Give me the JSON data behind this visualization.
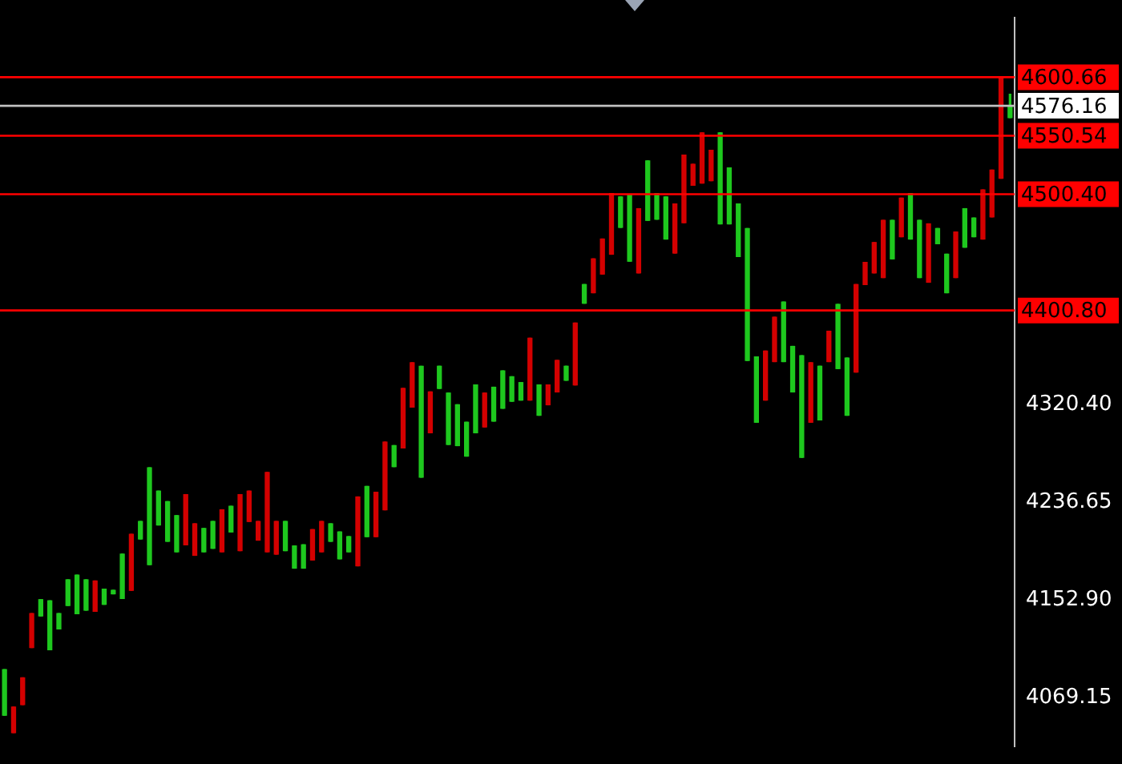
{
  "chart_data": {
    "type": "candlestick",
    "categories": [
      null,
      null,
      null,
      null,
      null,
      null,
      null,
      null,
      null,
      null,
      null,
      null,
      null,
      null,
      null,
      null,
      null,
      null,
      null,
      null,
      null,
      null,
      null,
      null,
      null,
      null,
      null,
      null,
      null,
      null,
      null,
      null,
      null,
      null,
      null,
      null,
      null,
      null,
      null,
      null,
      null,
      null,
      null,
      null,
      null,
      null,
      null,
      null,
      null,
      null,
      null,
      null,
      null,
      null,
      null,
      null,
      null,
      null,
      null,
      null,
      null,
      null,
      null,
      null,
      null,
      null,
      null,
      null,
      null,
      null,
      null,
      null,
      null,
      null,
      null,
      null,
      null,
      null,
      null,
      null,
      null,
      null,
      null,
      null,
      null,
      null,
      null,
      null,
      null,
      null,
      null,
      null,
      null,
      null,
      null,
      null,
      null,
      null,
      null,
      null,
      null,
      null,
      null,
      null,
      null,
      null,
      null,
      null,
      null,
      null,
      null,
      null
    ],
    "ohlc": [
      [
        4054,
        4093,
        4054,
        4093
      ],
      [
        4061,
        4061,
        4039,
        4039
      ],
      [
        4086,
        4086,
        4063,
        4063
      ],
      [
        4141,
        4141,
        4112,
        4112
      ],
      [
        4139,
        4153,
        4139,
        4153
      ],
      [
        4110,
        4152,
        4110,
        4152
      ],
      [
        4128,
        4141,
        4128,
        4141
      ],
      [
        4148,
        4170,
        4148,
        4170
      ],
      [
        4141,
        4174,
        4141,
        4174
      ],
      [
        4144,
        4170,
        4144,
        4170
      ],
      [
        4169,
        4169,
        4143,
        4143
      ],
      [
        4149,
        4162,
        4149,
        4162
      ],
      [
        4158,
        4161,
        4158,
        4161
      ],
      [
        4154,
        4192,
        4154,
        4192
      ],
      [
        4209,
        4209,
        4161,
        4161
      ],
      [
        4205,
        4220,
        4205,
        4220
      ],
      [
        4183,
        4266,
        4183,
        4266
      ],
      [
        4217,
        4246,
        4217,
        4246
      ],
      [
        4203,
        4237,
        4203,
        4237
      ],
      [
        4194,
        4225,
        4194,
        4225
      ],
      [
        4243,
        4243,
        4200,
        4200
      ],
      [
        4218,
        4218,
        4191,
        4191
      ],
      [
        4194,
        4214,
        4194,
        4214
      ],
      [
        4197,
        4220,
        4197,
        4220
      ],
      [
        4230,
        4230,
        4194,
        4194
      ],
      [
        4211,
        4233,
        4211,
        4233
      ],
      [
        4243,
        4243,
        4195,
        4195
      ],
      [
        4246,
        4246,
        4220,
        4220
      ],
      [
        4220,
        4220,
        4204,
        4204
      ],
      [
        4262,
        4262,
        4194,
        4194
      ],
      [
        4220,
        4220,
        4192,
        4192
      ],
      [
        4195,
        4220,
        4195,
        4220
      ],
      [
        4180,
        4199,
        4180,
        4199
      ],
      [
        4180,
        4200,
        4180,
        4200
      ],
      [
        4213,
        4213,
        4187,
        4187
      ],
      [
        4220,
        4220,
        4194,
        4194
      ],
      [
        4203,
        4218,
        4203,
        4218
      ],
      [
        4188,
        4211,
        4188,
        4211
      ],
      [
        4194,
        4207,
        4194,
        4207
      ],
      [
        4241,
        4241,
        4182,
        4182
      ],
      [
        4207,
        4250,
        4207,
        4250
      ],
      [
        4245,
        4245,
        4207,
        4207
      ],
      [
        4288,
        4288,
        4230,
        4230
      ],
      [
        4267,
        4285,
        4267,
        4285
      ],
      [
        4334,
        4334,
        4283,
        4283
      ],
      [
        4356,
        4356,
        4318,
        4318
      ],
      [
        4258,
        4353,
        4258,
        4353
      ],
      [
        4331,
        4331,
        4296,
        4296
      ],
      [
        4334,
        4353,
        4334,
        4353
      ],
      [
        4286,
        4330,
        4286,
        4330
      ],
      [
        4285,
        4320,
        4285,
        4320
      ],
      [
        4276,
        4305,
        4276,
        4305
      ],
      [
        4296,
        4337,
        4296,
        4337
      ],
      [
        4330,
        4330,
        4301,
        4301
      ],
      [
        4306,
        4335,
        4306,
        4335
      ],
      [
        4317,
        4349,
        4317,
        4349
      ],
      [
        4323,
        4344,
        4323,
        4344
      ],
      [
        4324,
        4339,
        4324,
        4339
      ],
      [
        4377,
        4377,
        4324,
        4324
      ],
      [
        4311,
        4337,
        4311,
        4337
      ],
      [
        4337,
        4337,
        4320,
        4320
      ],
      [
        4358,
        4358,
        4331,
        4331
      ],
      [
        4341,
        4353,
        4341,
        4353
      ],
      [
        4390,
        4390,
        4337,
        4337
      ],
      [
        4407,
        4423,
        4407,
        4423
      ],
      [
        4445,
        4445,
        4416,
        4416
      ],
      [
        4462,
        4462,
        4432,
        4432
      ],
      [
        4501,
        4501,
        4449,
        4449
      ],
      [
        4472,
        4498,
        4472,
        4498
      ],
      [
        4443,
        4500,
        4443,
        4500
      ],
      [
        4488,
        4488,
        4433,
        4433
      ],
      [
        4478,
        4529,
        4478,
        4529
      ],
      [
        4479,
        4501,
        4479,
        4501
      ],
      [
        4462,
        4498,
        4462,
        4498
      ],
      [
        4492,
        4492,
        4450,
        4450
      ],
      [
        4534,
        4534,
        4476,
        4476
      ],
      [
        4526,
        4526,
        4508,
        4508
      ],
      [
        4553,
        4553,
        4510,
        4510
      ],
      [
        4538,
        4538,
        4512,
        4512
      ],
      [
        4475,
        4553,
        4475,
        4553
      ],
      [
        4475,
        4523,
        4475,
        4523
      ],
      [
        4447,
        4492,
        4447,
        4492
      ],
      [
        4358,
        4471,
        4358,
        4471
      ],
      [
        4305,
        4361,
        4305,
        4361
      ],
      [
        4366,
        4366,
        4324,
        4324
      ],
      [
        4395,
        4395,
        4357,
        4357
      ],
      [
        4357,
        4408,
        4357,
        4408
      ],
      [
        4331,
        4370,
        4331,
        4370
      ],
      [
        4275,
        4362,
        4275,
        4362
      ],
      [
        4356,
        4356,
        4305,
        4305
      ],
      [
        4307,
        4353,
        4307,
        4353
      ],
      [
        4383,
        4383,
        4357,
        4357
      ],
      [
        4351,
        4406,
        4351,
        4406
      ],
      [
        4311,
        4360,
        4311,
        4360
      ],
      [
        4423,
        4423,
        4348,
        4348
      ],
      [
        4442,
        4442,
        4423,
        4423
      ],
      [
        4459,
        4459,
        4433,
        4433
      ],
      [
        4478,
        4478,
        4429,
        4429
      ],
      [
        4445,
        4478,
        4445,
        4478
      ],
      [
        4497,
        4497,
        4464,
        4464
      ],
      [
        4462,
        4501,
        4462,
        4501
      ],
      [
        4429,
        4478,
        4429,
        4478
      ],
      [
        4475,
        4475,
        4425,
        4425
      ],
      [
        4458,
        4471,
        4458,
        4471
      ],
      [
        4416,
        4449,
        4416,
        4449
      ],
      [
        4468,
        4468,
        4429,
        4429
      ],
      [
        4455,
        4488,
        4455,
        4488
      ],
      [
        4464,
        4480,
        4464,
        4480
      ],
      [
        4504,
        4504,
        4462,
        4462
      ],
      [
        4521,
        4521,
        4481,
        4481
      ],
      [
        4601,
        4601,
        4514,
        4514
      ],
      [
        4566,
        4586,
        4566,
        4576
      ]
    ],
    "colors": [
      "#1ec81e",
      "#d40000",
      "#d40000",
      "#d40000",
      "#1ec81e",
      "#1ec81e",
      "#1ec81e",
      "#1ec81e",
      "#1ec81e",
      "#1ec81e",
      "#d40000",
      "#1ec81e",
      "#1ec81e",
      "#1ec81e",
      "#d40000",
      "#1ec81e",
      "#1ec81e",
      "#1ec81e",
      "#1ec81e",
      "#1ec81e",
      "#d40000",
      "#d40000",
      "#1ec81e",
      "#1ec81e",
      "#d40000",
      "#1ec81e",
      "#d40000",
      "#d40000",
      "#d40000",
      "#d40000",
      "#d40000",
      "#1ec81e",
      "#1ec81e",
      "#1ec81e",
      "#d40000",
      "#d40000",
      "#1ec81e",
      "#1ec81e",
      "#1ec81e",
      "#d40000",
      "#1ec81e",
      "#d40000",
      "#d40000",
      "#1ec81e",
      "#d40000",
      "#d40000",
      "#1ec81e",
      "#d40000",
      "#1ec81e",
      "#1ec81e",
      "#1ec81e",
      "#1ec81e",
      "#1ec81e",
      "#d40000",
      "#1ec81e",
      "#1ec81e",
      "#1ec81e",
      "#1ec81e",
      "#d40000",
      "#1ec81e",
      "#d40000",
      "#d40000",
      "#1ec81e",
      "#d40000",
      "#1ec81e",
      "#d40000",
      "#d40000",
      "#d40000",
      "#1ec81e",
      "#1ec81e",
      "#d40000",
      "#1ec81e",
      "#1ec81e",
      "#1ec81e",
      "#d40000",
      "#d40000",
      "#d40000",
      "#d40000",
      "#d40000",
      "#1ec81e",
      "#1ec81e",
      "#1ec81e",
      "#1ec81e",
      "#1ec81e",
      "#d40000",
      "#d40000",
      "#1ec81e",
      "#1ec81e",
      "#1ec81e",
      "#d40000",
      "#1ec81e",
      "#d40000",
      "#1ec81e",
      "#1ec81e",
      "#d40000",
      "#d40000",
      "#d40000",
      "#d40000",
      "#1ec81e",
      "#d40000",
      "#1ec81e",
      "#1ec81e",
      "#d40000",
      "#1ec81e",
      "#1ec81e",
      "#d40000",
      "#1ec81e",
      "#1ec81e",
      "#d40000",
      "#d40000",
      "#d40000",
      "#1ec81e"
    ],
    "ylim": [
      4027,
      4652
    ],
    "yticks": [
      4069.15,
      {
        "value": 4152.9,
        "label": "4152.90"
      },
      4236.65,
      {
        "value": 4320.4,
        "label": "4320.40"
      }
    ],
    "tick_labels": "y",
    "grid": false,
    "legend": false,
    "ref_lines": [
      {
        "axis": "y",
        "value": 4600.66,
        "label": "4600.66",
        "color": "#ff0000"
      },
      {
        "axis": "y",
        "value": 4576.16,
        "label": "4576.16",
        "color": "#c0c0c0"
      },
      {
        "axis": "y",
        "value": 4550.54,
        "label": "4550.54",
        "color": "#ff0000"
      },
      {
        "axis": "y",
        "value": 4500.4,
        "label": "4500.40",
        "color": "#ff0000"
      },
      {
        "axis": "y",
        "value": 4400.8,
        "label": "4400.80",
        "color": "#ff0000"
      }
    ]
  }
}
